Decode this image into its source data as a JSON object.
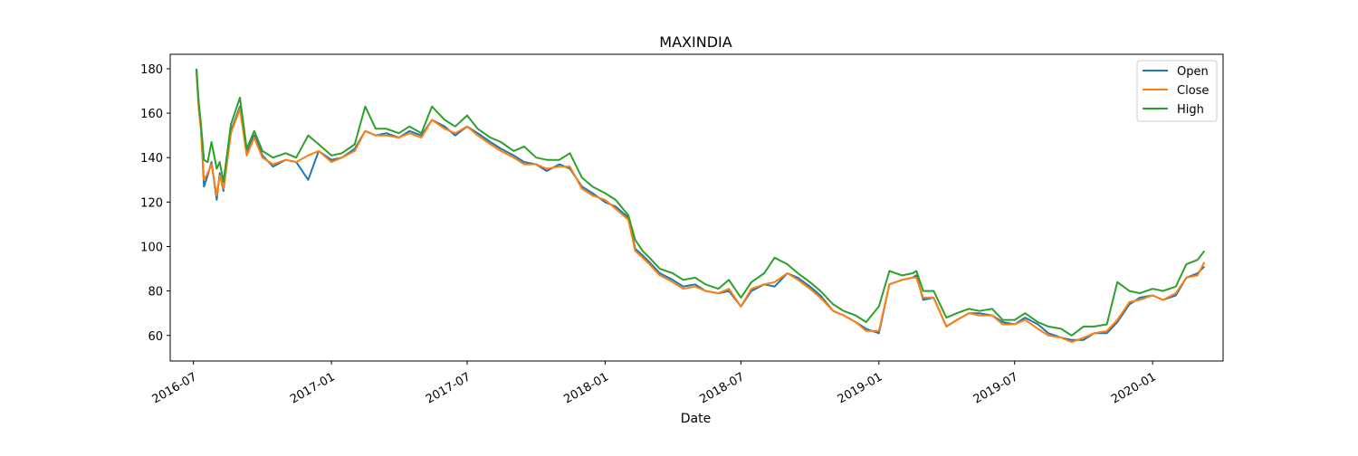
{
  "chart_data": {
    "type": "line",
    "title": "MAXINDIA",
    "xlabel": "Date",
    "ylabel": "",
    "xlim": [
      "2016-05-31",
      "2020-04-04"
    ],
    "ylim": [
      48.5,
      186.5
    ],
    "x_ticks": [
      "2016-07-01",
      "2017-01-01",
      "2017-07-01",
      "2018-01-01",
      "2018-07-01",
      "2019-01-01",
      "2019-07-01",
      "2020-01-01"
    ],
    "x_tick_labels": [
      "2016-07",
      "2017-01",
      "2017-07",
      "2018-01",
      "2018-07",
      "2019-01",
      "2019-07",
      "2020-01"
    ],
    "y_ticks": [
      60,
      80,
      100,
      120,
      140,
      160,
      180
    ],
    "y_tick_labels": [
      "60",
      "80",
      "100",
      "120",
      "140",
      "160",
      "180"
    ],
    "legend_position": "top-right",
    "grid": false,
    "x": [
      "2016-07-05",
      "2016-07-08",
      "2016-07-11",
      "2016-07-15",
      "2016-07-20",
      "2016-07-25",
      "2016-08-01",
      "2016-08-05",
      "2016-08-10",
      "2016-08-20",
      "2016-09-01",
      "2016-09-10",
      "2016-09-20",
      "2016-10-01",
      "2016-10-15",
      "2016-11-01",
      "2016-11-15",
      "2016-12-01",
      "2016-12-15",
      "2017-01-01",
      "2017-01-15",
      "2017-02-01",
      "2017-02-15",
      "2017-03-01",
      "2017-03-15",
      "2017-04-01",
      "2017-04-15",
      "2017-05-01",
      "2017-05-15",
      "2017-06-01",
      "2017-06-15",
      "2017-07-01",
      "2017-07-15",
      "2017-08-01",
      "2017-08-15",
      "2017-09-01",
      "2017-09-15",
      "2017-10-01",
      "2017-10-15",
      "2017-11-01",
      "2017-11-15",
      "2017-12-01",
      "2017-12-15",
      "2018-01-01",
      "2018-01-15",
      "2018-02-01",
      "2018-02-10",
      "2018-02-20",
      "2018-03-01",
      "2018-03-15",
      "2018-04-01",
      "2018-04-15",
      "2018-05-01",
      "2018-05-15",
      "2018-06-01",
      "2018-06-15",
      "2018-07-01",
      "2018-07-15",
      "2018-08-01",
      "2018-08-15",
      "2018-09-01",
      "2018-09-15",
      "2018-10-01",
      "2018-10-15",
      "2018-11-01",
      "2018-11-15",
      "2018-12-01",
      "2018-12-15",
      "2019-01-01",
      "2019-01-15",
      "2019-02-01",
      "2019-02-15",
      "2019-02-20",
      "2019-03-01",
      "2019-03-15",
      "2019-04-01",
      "2019-04-15",
      "2019-05-01",
      "2019-05-15",
      "2019-06-01",
      "2019-06-15",
      "2019-07-01",
      "2019-07-15",
      "2019-08-01",
      "2019-08-15",
      "2019-09-01",
      "2019-09-15",
      "2019-10-01",
      "2019-10-15",
      "2019-11-01",
      "2019-11-15",
      "2019-12-01",
      "2019-12-15",
      "2020-01-01",
      "2020-01-15",
      "2020-02-01",
      "2020-02-15",
      "2020-03-01",
      "2020-03-10"
    ],
    "series": [
      {
        "name": "Open",
        "color": "#1f77b4",
        "values": [
          180,
          163,
          153,
          127,
          132,
          138,
          121,
          133,
          125,
          152,
          163,
          142,
          150,
          141,
          136,
          139,
          138,
          130,
          143,
          139,
          140,
          144,
          152,
          150,
          151,
          149,
          152,
          150,
          157,
          154,
          150,
          154,
          151,
          147,
          144,
          141,
          138,
          137,
          134,
          137,
          135,
          127,
          124,
          120,
          118,
          113,
          99,
          96,
          93,
          88,
          85,
          82,
          83,
          80,
          79,
          80,
          73,
          80,
          83,
          82,
          88,
          86,
          82,
          78,
          71,
          69,
          66,
          63,
          61,
          83,
          85,
          86,
          87,
          76,
          77,
          64,
          67,
          70,
          70,
          69,
          66,
          65,
          68,
          65,
          61,
          59,
          58,
          58,
          61,
          61,
          66,
          74,
          77,
          78,
          76,
          78,
          86,
          88,
          91
        ]
      },
      {
        "name": "Close",
        "color": "#ff7f0e",
        "values": [
          178,
          162,
          152,
          130,
          133,
          137,
          123,
          132,
          126,
          151,
          162,
          141,
          149,
          140,
          137,
          139,
          138,
          141,
          143,
          138,
          140,
          143,
          152,
          150,
          150,
          149,
          151,
          149,
          157,
          153,
          151,
          154,
          150,
          146,
          143,
          140,
          137,
          137,
          135,
          136,
          136,
          126,
          123,
          121,
          117,
          112,
          98,
          95,
          92,
          87,
          84,
          81,
          82,
          80,
          79,
          81,
          73,
          81,
          83,
          84,
          88,
          85,
          81,
          77,
          71,
          69,
          66,
          62,
          62,
          83,
          85,
          86,
          86,
          77,
          77,
          64,
          67,
          70,
          69,
          69,
          65,
          65,
          67,
          63,
          60,
          59,
          57,
          59,
          61,
          62,
          67,
          75,
          76,
          78,
          76,
          79,
          86,
          87,
          93
        ]
      },
      {
        "name": "High",
        "color": "#2ca02c",
        "values": [
          180,
          165,
          155,
          139,
          138,
          147,
          135,
          138,
          129,
          155,
          167,
          144,
          152,
          143,
          140,
          142,
          140,
          150,
          146,
          141,
          142,
          146,
          163,
          153,
          153,
          151,
          154,
          151,
          163,
          157,
          154,
          159,
          153,
          149,
          147,
          143,
          145,
          140,
          139,
          139,
          142,
          131,
          127,
          124,
          121,
          114,
          103,
          98,
          95,
          90,
          88,
          85,
          86,
          83,
          81,
          85,
          77,
          84,
          88,
          95,
          92,
          88,
          84,
          80,
          74,
          71,
          69,
          66,
          73,
          89,
          87,
          88,
          89,
          80,
          80,
          68,
          70,
          72,
          71,
          72,
          67,
          67,
          70,
          66,
          64,
          63,
          60,
          64,
          64,
          65,
          84,
          80,
          79,
          81,
          80,
          82,
          92,
          94,
          98
        ]
      }
    ]
  }
}
